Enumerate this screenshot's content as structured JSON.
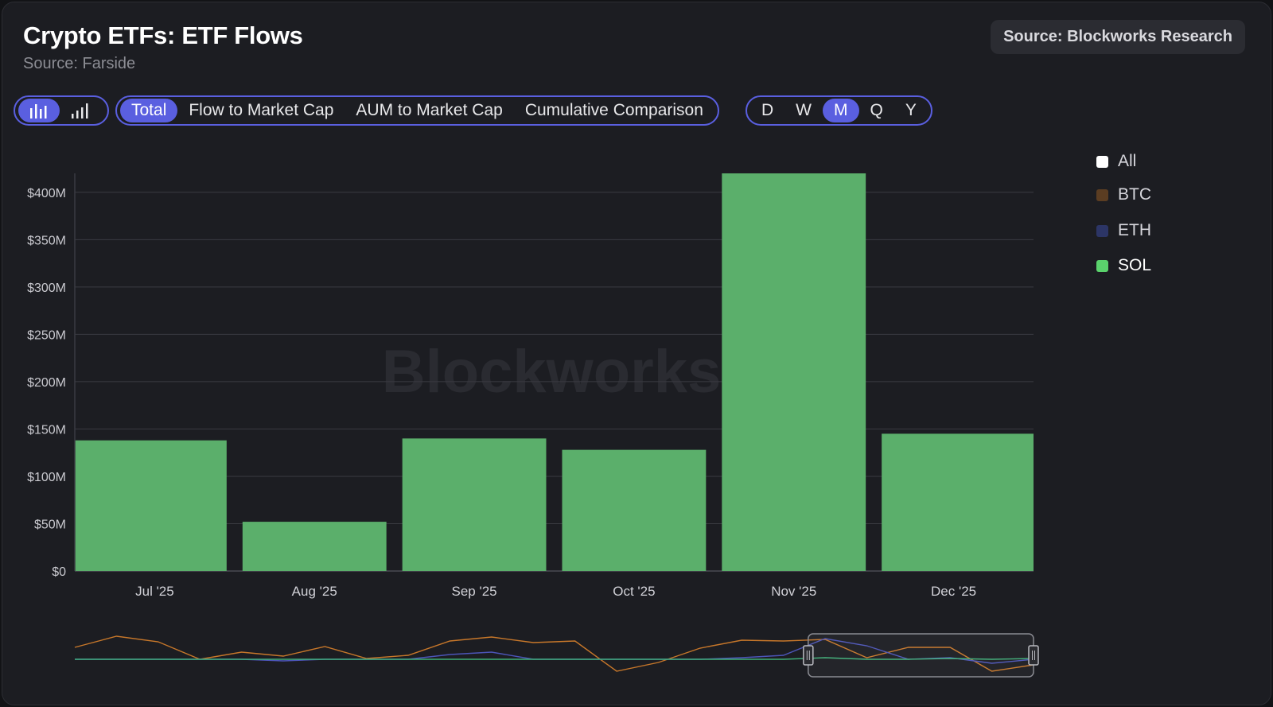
{
  "header": {
    "title": "Crypto ETFs: ETF Flows",
    "subtitle": "Source: Farside",
    "source_badge": "Source: Blockworks Research"
  },
  "controls": {
    "chart_type_icons": [
      {
        "icon": "bar-chart-icon",
        "active": true
      },
      {
        "icon": "signal-bars-icon",
        "active": false
      }
    ],
    "view_tabs": [
      {
        "label": "Total",
        "active": true
      },
      {
        "label": "Flow to Market Cap",
        "active": false
      },
      {
        "label": "AUM to Market Cap",
        "active": false
      },
      {
        "label": "Cumulative Comparison",
        "active": false
      }
    ],
    "period_tabs": [
      {
        "label": "D",
        "active": false
      },
      {
        "label": "W",
        "active": false
      },
      {
        "label": "M",
        "active": true
      },
      {
        "label": "Q",
        "active": false
      },
      {
        "label": "Y",
        "active": false
      }
    ],
    "accent_color": "#5a5fe0"
  },
  "legend": [
    {
      "label": "All",
      "color": "#ffffff"
    },
    {
      "label": "BTC",
      "color": "#5b3d22"
    },
    {
      "label": "ETH",
      "color": "#2c3566"
    },
    {
      "label": "SOL",
      "color": "#5ad26c"
    }
  ],
  "watermark": "Blockworks",
  "chart_data": {
    "type": "bar",
    "categories": [
      "Jul '25",
      "Aug '25",
      "Sep '25",
      "Oct '25",
      "Nov '25",
      "Dec '25"
    ],
    "series": [
      {
        "name": "SOL",
        "color": "#5baf6b",
        "values": [
          138,
          52,
          140,
          128,
          420,
          145
        ]
      }
    ],
    "yticks": [
      0,
      50,
      100,
      150,
      200,
      250,
      300,
      350,
      400
    ],
    "ytick_labels": [
      "$0",
      "$50M",
      "$100M",
      "$150M",
      "$200M",
      "$250M",
      "$300M",
      "$350M",
      "$400M"
    ],
    "ylim": [
      0,
      420
    ],
    "grid": true,
    "legend_position": "right"
  },
  "navigator": {
    "series": [
      {
        "name": "BTC",
        "color": "#c7772a",
        "values": [
          15,
          29,
          22,
          0,
          9,
          4,
          16,
          1,
          5,
          23,
          28,
          21,
          23,
          -15,
          -4,
          14,
          24,
          23,
          25,
          2,
          15,
          15,
          -15,
          -7
        ]
      },
      {
        "name": "ETH",
        "color": "#4c55b8",
        "values": [
          0,
          0,
          0,
          0,
          0,
          -2,
          0,
          0,
          0,
          6,
          9,
          0,
          0,
          0,
          0,
          0,
          2,
          5,
          26,
          17,
          0,
          2,
          -5,
          0
        ]
      },
      {
        "name": "SOL",
        "color": "#3fae78",
        "values": [
          0,
          0,
          0,
          0,
          0,
          0,
          0,
          0,
          0,
          0,
          0,
          0,
          0,
          0,
          0,
          0,
          0,
          0,
          2,
          0,
          0,
          1,
          0,
          1
        ]
      }
    ],
    "selection_range": [
      0.765,
      1.0
    ]
  }
}
